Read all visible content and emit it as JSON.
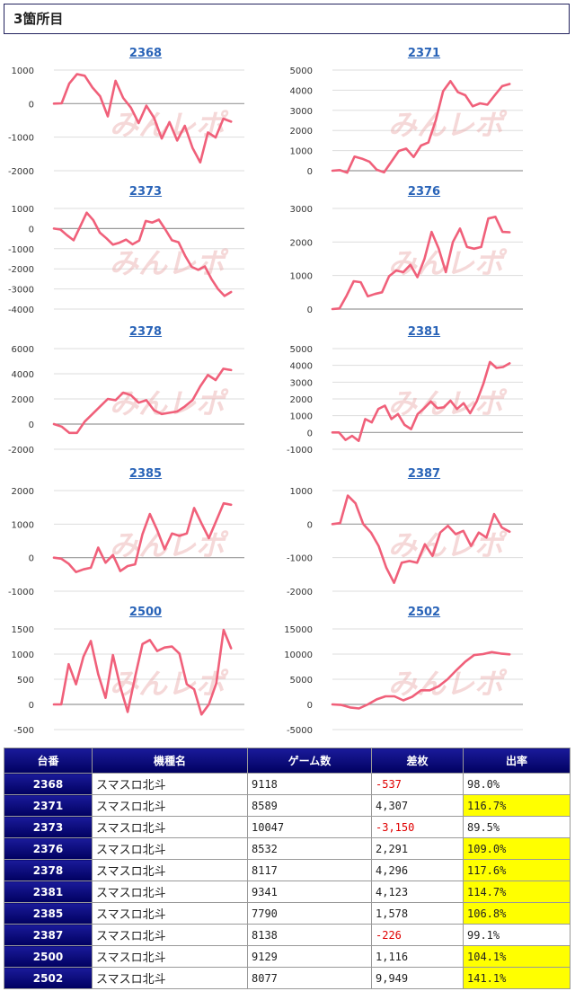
{
  "header": {
    "title": "3箇所目"
  },
  "colors": {
    "line": "#f0607a",
    "grid": "#dddddd",
    "axis": "#999999",
    "title": "#2a64b8",
    "header_bg": "#0b0b7a",
    "negative": "#e00000",
    "highlight": "#ffff00"
  },
  "watermark": "みんレポ",
  "chart_data": [
    {
      "type": "line",
      "title": "2368",
      "ylim": [
        -2000,
        1000
      ],
      "yticks": [
        -2000,
        -1000,
        0,
        1000
      ],
      "values": [
        0,
        10,
        600,
        880,
        830,
        480,
        220,
        -380,
        680,
        170,
        -120,
        -580,
        -60,
        -420,
        -1040,
        -550,
        -1100,
        -660,
        -1320,
        -1750,
        -860,
        -1010,
        -450,
        -537
      ]
    },
    {
      "type": "line",
      "title": "2371",
      "ylim": [
        0,
        5000
      ],
      "yticks": [
        0,
        1000,
        2000,
        3000,
        4000,
        5000
      ],
      "values": [
        0,
        30,
        -100,
        700,
        600,
        450,
        50,
        -80,
        450,
        980,
        1100,
        680,
        1250,
        1400,
        2500,
        3950,
        4450,
        3900,
        3750,
        3200,
        3350,
        3280,
        3750,
        4200,
        4307
      ]
    },
    {
      "type": "line",
      "title": "2373",
      "ylim": [
        -4000,
        1000
      ],
      "yticks": [
        -4000,
        -3000,
        -2000,
        -1000,
        0,
        1000
      ],
      "values": [
        0,
        -50,
        -330,
        -580,
        100,
        790,
        420,
        -200,
        -480,
        -800,
        -700,
        -550,
        -780,
        -600,
        380,
        300,
        440,
        -50,
        -580,
        -680,
        -1350,
        -1900,
        -2050,
        -1880,
        -2500,
        -3000,
        -3350,
        -3150
      ]
    },
    {
      "type": "line",
      "title": "2376",
      "ylim": [
        0,
        3000
      ],
      "yticks": [
        0,
        1000,
        2000,
        3000
      ],
      "values": [
        0,
        20,
        400,
        830,
        800,
        380,
        450,
        500,
        980,
        1150,
        1100,
        1320,
        950,
        1500,
        2300,
        1800,
        1100,
        2000,
        2400,
        1850,
        1800,
        1850,
        2700,
        2750,
        2300,
        2291
      ]
    },
    {
      "type": "line",
      "title": "2378",
      "ylim": [
        -2000,
        6000
      ],
      "yticks": [
        -2000,
        0,
        2000,
        4000,
        6000
      ],
      "values": [
        0,
        -200,
        -700,
        -700,
        200,
        800,
        1400,
        2000,
        1900,
        2500,
        2300,
        1700,
        1900,
        1100,
        800,
        900,
        1000,
        1400,
        1900,
        3000,
        3900,
        3500,
        4400,
        4296
      ]
    },
    {
      "type": "line",
      "title": "2381",
      "ylim": [
        -1000,
        5000
      ],
      "yticks": [
        -1000,
        0,
        1000,
        2000,
        3000,
        4000,
        5000
      ],
      "values": [
        0,
        0,
        -450,
        -200,
        -500,
        800,
        600,
        1400,
        1600,
        800,
        1100,
        450,
        200,
        1100,
        1450,
        1850,
        1450,
        1500,
        1900,
        1400,
        1750,
        1150,
        1850,
        2900,
        4200,
        3850,
        3900,
        4123
      ]
    },
    {
      "type": "line",
      "title": "2385",
      "ylim": [
        -1000,
        2000
      ],
      "yticks": [
        -1000,
        0,
        1000,
        2000
      ],
      "values": [
        0,
        -30,
        -180,
        -430,
        -350,
        -300,
        300,
        -150,
        80,
        -400,
        -250,
        -200,
        700,
        1300,
        820,
        250,
        720,
        650,
        720,
        1480,
        1020,
        580,
        1100,
        1620,
        1578
      ]
    },
    {
      "type": "line",
      "title": "2387",
      "ylim": [
        -2000,
        1000
      ],
      "yticks": [
        -2000,
        -1000,
        0,
        1000
      ],
      "values": [
        0,
        30,
        850,
        620,
        0,
        -250,
        -650,
        -1300,
        -1750,
        -1150,
        -1100,
        -1150,
        -600,
        -950,
        -250,
        -50,
        -300,
        -200,
        -650,
        -250,
        -400,
        300,
        -100,
        -226
      ]
    },
    {
      "type": "line",
      "title": "2500",
      "ylim": [
        -500,
        1500
      ],
      "yticks": [
        -500,
        0,
        500,
        1000,
        1500
      ],
      "values": [
        0,
        0,
        800,
        400,
        950,
        1260,
        600,
        130,
        980,
        350,
        -150,
        550,
        1200,
        1280,
        1060,
        1130,
        1150,
        1010,
        400,
        300,
        -200,
        0,
        420,
        1480,
        1116
      ]
    },
    {
      "type": "line",
      "title": "2502",
      "ylim": [
        -5000,
        15000
      ],
      "yticks": [
        -5000,
        0,
        5000,
        10000,
        15000
      ],
      "values": [
        0,
        -100,
        -600,
        -800,
        0,
        1000,
        1600,
        1600,
        800,
        1500,
        2800,
        2800,
        3600,
        5000,
        6800,
        8500,
        9800,
        10000,
        10400,
        10100,
        9949
      ]
    }
  ],
  "table": {
    "headers": [
      "台番",
      "機種名",
      "ゲーム数",
      "差枚",
      "出率"
    ],
    "rows": [
      {
        "machine": "2368",
        "name": "スマスロ北斗",
        "games": "9118",
        "diff": "-537",
        "rate": "98.0%",
        "neg": true,
        "hl": false
      },
      {
        "machine": "2371",
        "name": "スマスロ北斗",
        "games": "8589",
        "diff": "4,307",
        "rate": "116.7%",
        "neg": false,
        "hl": true
      },
      {
        "machine": "2373",
        "name": "スマスロ北斗",
        "games": "10047",
        "diff": "-3,150",
        "rate": "89.5%",
        "neg": true,
        "hl": false
      },
      {
        "machine": "2376",
        "name": "スマスロ北斗",
        "games": "8532",
        "diff": "2,291",
        "rate": "109.0%",
        "neg": false,
        "hl": true
      },
      {
        "machine": "2378",
        "name": "スマスロ北斗",
        "games": "8117",
        "diff": "4,296",
        "rate": "117.6%",
        "neg": false,
        "hl": true
      },
      {
        "machine": "2381",
        "name": "スマスロ北斗",
        "games": "9341",
        "diff": "4,123",
        "rate": "114.7%",
        "neg": false,
        "hl": true
      },
      {
        "machine": "2385",
        "name": "スマスロ北斗",
        "games": "7790",
        "diff": "1,578",
        "rate": "106.8%",
        "neg": false,
        "hl": true
      },
      {
        "machine": "2387",
        "name": "スマスロ北斗",
        "games": "8138",
        "diff": "-226",
        "rate": "99.1%",
        "neg": true,
        "hl": false
      },
      {
        "machine": "2500",
        "name": "スマスロ北斗",
        "games": "9129",
        "diff": "1,116",
        "rate": "104.1%",
        "neg": false,
        "hl": true
      },
      {
        "machine": "2502",
        "name": "スマスロ北斗",
        "games": "8077",
        "diff": "9,949",
        "rate": "141.1%",
        "neg": false,
        "hl": true
      }
    ]
  }
}
